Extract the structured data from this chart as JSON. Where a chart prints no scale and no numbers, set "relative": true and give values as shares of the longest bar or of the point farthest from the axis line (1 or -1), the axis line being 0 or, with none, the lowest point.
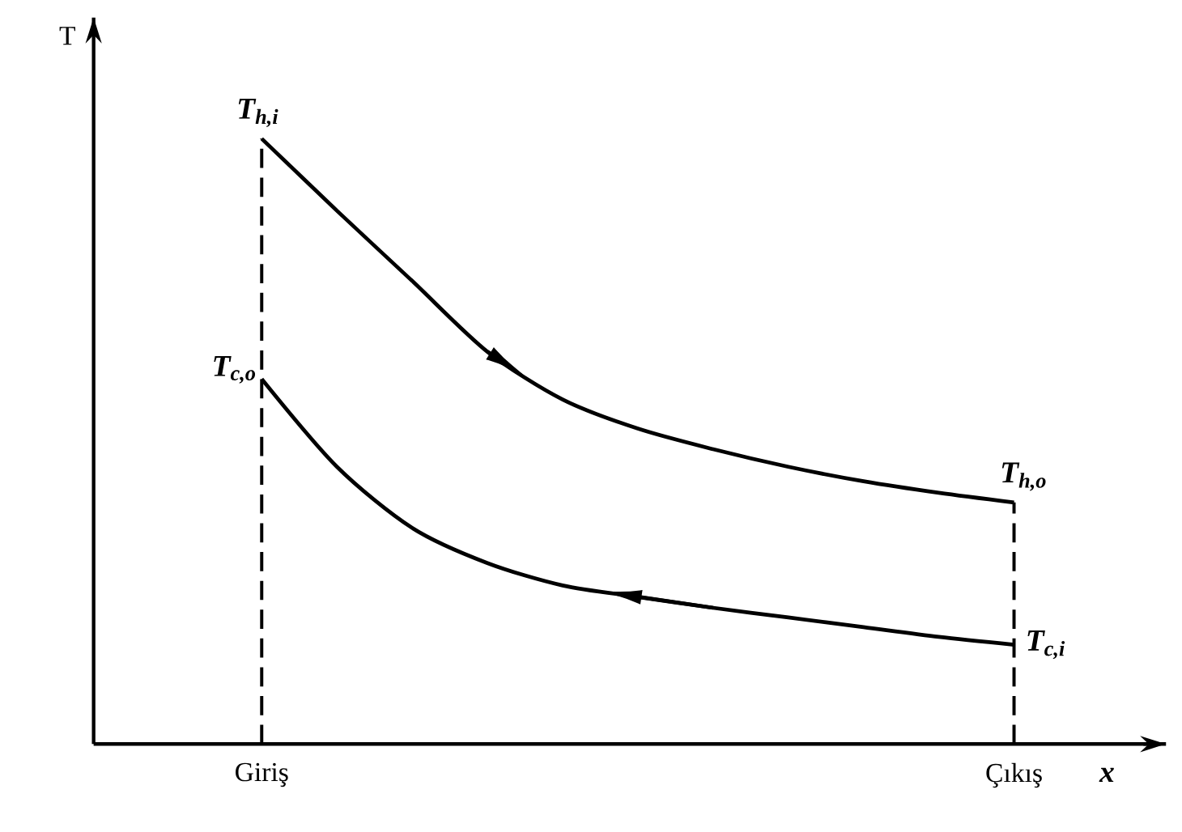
{
  "chart_data": {
    "type": "line",
    "relative": true,
    "xlabel": "x",
    "categories": [
      "Giriş",
      null,
      null,
      null,
      null,
      null,
      null,
      null,
      null,
      null,
      "Çıkış"
    ],
    "series": [
      {
        "color": "#000000",
        "values": [
          1.0,
          0.881,
          0.765,
          0.648,
          0.569,
          0.521,
          0.487,
          0.458,
          0.434,
          0.415,
          0.399
        ]
      },
      {
        "color": "#000000",
        "values": [
          0.603,
          0.458,
          0.357,
          0.299,
          0.262,
          0.243,
          0.225,
          0.209,
          0.193,
          0.177,
          0.164
        ]
      }
    ],
    "ref_lines": [
      {
        "axis": "x",
        "value": "Giriş",
        "line_style": "dashed"
      },
      {
        "axis": "x",
        "value": "Çıkış",
        "line_style": "dashed"
      }
    ],
    "annotations": [
      {
        "text": "T$_{h,i}$",
        "x": "Giriş",
        "y": 1.0
      },
      {
        "text": "T$_{c,o}$",
        "x": "Giriş",
        "y": 0.603
      },
      {
        "text": "T$_{h,o}$",
        "x": "Çıkış",
        "y": 0.399
      },
      {
        "text": "T$_{c,i}$",
        "x": "Çıkış",
        "y": 0.164
      },
      "T"
    ],
    "marker": "none",
    "line_style": "solid"
  }
}
